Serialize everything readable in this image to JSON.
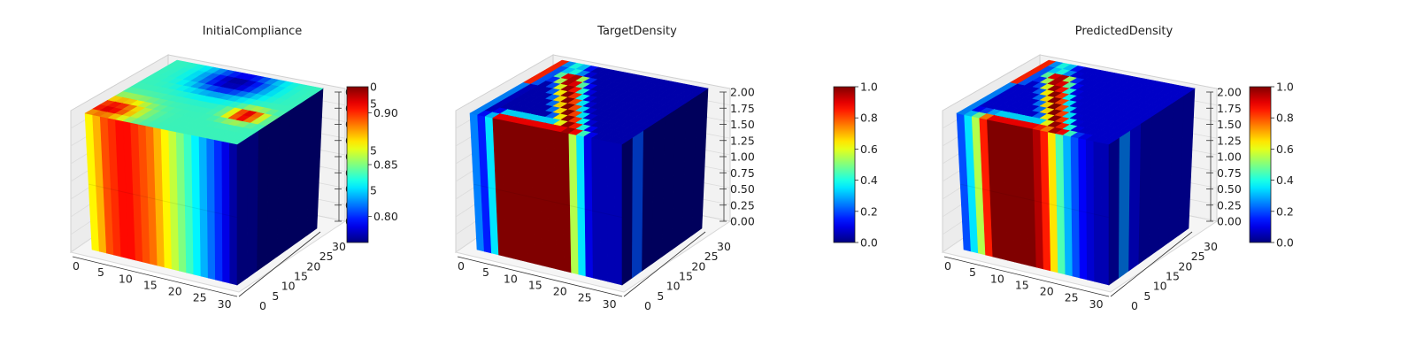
{
  "colormap": "jet",
  "chart_data": [
    {
      "type": "voxel-3d",
      "title": "InitialCompliance",
      "x_ticks": [
        "0",
        "5",
        "10",
        "15",
        "20",
        "25",
        "30"
      ],
      "y_ticks": [
        "0",
        "5",
        "10",
        "15",
        "20",
        "25",
        "30"
      ],
      "z_ticks": [
        "0",
        "0",
        "0",
        "0",
        "0",
        "0",
        "0",
        "0",
        "0"
      ],
      "xlim": [
        0,
        32
      ],
      "ylim": [
        0,
        32
      ],
      "zlim": [
        0,
        2
      ],
      "colorbar": {
        "ticks": [
          "0.80",
          "0.85",
          "0.90"
        ],
        "tick_values": [
          0.8,
          0.85,
          0.9
        ],
        "range": [
          0.775,
          0.925
        ],
        "top_label": "0",
        "side_labels": [
          "5",
          "5",
          "5"
        ]
      },
      "front_profile": [
        0.87,
        0.88,
        0.895,
        0.9,
        0.905,
        0.905,
        0.9,
        0.895,
        0.89,
        0.88,
        0.87,
        0.86,
        0.85,
        0.84,
        0.83,
        0.82,
        0.81,
        0.8,
        0.79,
        0.78
      ],
      "right_profile": [
        0.78,
        0.78,
        0.775,
        0.775,
        0.775,
        0.775,
        0.775,
        0.775
      ],
      "top_hotspots": [
        {
          "u": 0.08,
          "v": 0.15,
          "r": 0.18,
          "value": 0.91
        },
        {
          "u": 0.82,
          "v": 0.42,
          "r": 0.1,
          "value": 0.92
        },
        {
          "u": 0.5,
          "v": 0.85,
          "r": 0.22,
          "value": 0.78
        }
      ],
      "top_base": 0.84
    },
    {
      "type": "voxel-3d",
      "title": "TargetDensity",
      "x_ticks": [
        "0",
        "5",
        "10",
        "15",
        "20",
        "25",
        "30"
      ],
      "y_ticks": [
        "0",
        "5",
        "10",
        "15",
        "20",
        "25",
        "30"
      ],
      "z_ticks": [
        "0.00",
        "0.25",
        "0.50",
        "0.75",
        "1.00",
        "1.25",
        "1.50",
        "1.75",
        "2.00"
      ],
      "xlim": [
        0,
        32
      ],
      "ylim": [
        0,
        32
      ],
      "zlim": [
        0,
        2
      ],
      "colorbar": {
        "ticks": [
          "0.0",
          "0.2",
          "0.4",
          "0.6",
          "0.8",
          "1.0"
        ],
        "tick_values": [
          0,
          0.2,
          0.4,
          0.6,
          0.8,
          1.0
        ],
        "range": [
          0,
          1
        ]
      },
      "front_profile": [
        0.25,
        0.15,
        0.35,
        1.0,
        1.0,
        1.0,
        1.0,
        1.0,
        1.0,
        1.0,
        1.0,
        1.0,
        1.0,
        0.55,
        0.35,
        0.1,
        0.05,
        0.05,
        0.05,
        0.05
      ],
      "right_profile": [
        0.0,
        0.2,
        0.0,
        0.0,
        0.0,
        0.0,
        0.0,
        0.0
      ],
      "top_band": true,
      "top_base": 0.05
    },
    {
      "type": "voxel-3d",
      "title": "PredictedDensity",
      "x_ticks": [
        "0",
        "5",
        "10",
        "15",
        "20",
        "25",
        "30"
      ],
      "y_ticks": [
        "0",
        "5",
        "10",
        "15",
        "20",
        "25",
        "30"
      ],
      "z_ticks": [
        "0.00",
        "0.25",
        "0.50",
        "0.75",
        "1.00",
        "1.25",
        "1.50",
        "1.75",
        "2.00"
      ],
      "xlim": [
        0,
        32
      ],
      "ylim": [
        0,
        32
      ],
      "zlim": [
        0,
        2
      ],
      "colorbar": {
        "ticks": [
          "0.0",
          "0.2",
          "0.4",
          "0.6",
          "0.8",
          "1.0"
        ],
        "tick_values": [
          0,
          0.2,
          0.4,
          0.6,
          0.8,
          1.0
        ],
        "range": [
          0,
          1
        ]
      },
      "front_profile": [
        0.2,
        0.35,
        0.55,
        0.85,
        1.0,
        1.0,
        1.0,
        1.0,
        1.0,
        1.0,
        0.95,
        0.85,
        0.65,
        0.45,
        0.3,
        0.2,
        0.12,
        0.08,
        0.05,
        0.05
      ],
      "right_profile": [
        0.05,
        0.25,
        0.1,
        0.05,
        0.05,
        0.05,
        0.05,
        0.05
      ],
      "top_band": true,
      "top_base": 0.08
    }
  ]
}
